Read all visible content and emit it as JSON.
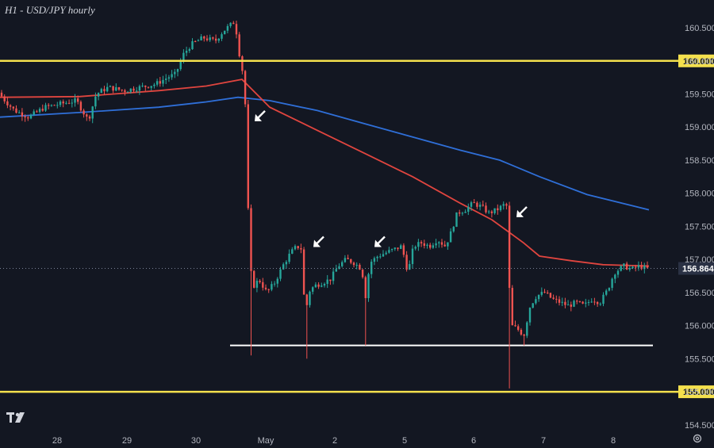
{
  "title": "H1 - USD/JPY hourly",
  "colors": {
    "background": "#131722",
    "up_candle": "#26a69a",
    "down_candle": "#ef5350",
    "ma_fast": "#e0453f",
    "ma_slow": "#2f6fd8",
    "level_line": "#f4e04d",
    "support_line": "#ffffff",
    "price_tag": "#2a3144",
    "arrow": "#ffffff"
  },
  "chart_data": {
    "type": "candlestick",
    "x_ticks": [
      "28",
      "29",
      "30",
      "May",
      "2",
      "5",
      "6",
      "7",
      "8"
    ],
    "y_ticks": [
      "160.500",
      "160.000",
      "159.500",
      "159.000",
      "158.500",
      "158.000",
      "157.500",
      "157.000",
      "156.500",
      "156.000",
      "155.500",
      "155.000",
      "154.500"
    ],
    "ylim": [
      154.45,
      160.8
    ],
    "grid": false,
    "horizontal_levels": [
      {
        "value": 160.0,
        "label": "160.000",
        "color": "#f4e04d"
      },
      {
        "value": 155.0,
        "label": "155.000",
        "color": "#f4e04d"
      },
      {
        "value": 155.7,
        "color": "#ffffff"
      }
    ],
    "last_price": {
      "value": 156.864,
      "label": "156.864"
    },
    "price_path": [
      [
        0,
        159.55
      ],
      [
        10,
        159.4
      ],
      [
        22,
        159.25
      ],
      [
        40,
        159.15
      ],
      [
        60,
        159.3
      ],
      [
        80,
        159.35
      ],
      [
        100,
        159.4
      ],
      [
        115,
        159.1
      ],
      [
        125,
        159.5
      ],
      [
        140,
        159.6
      ],
      [
        160,
        159.55
      ],
      [
        180,
        159.6
      ],
      [
        200,
        159.65
      ],
      [
        215,
        159.75
      ],
      [
        225,
        159.8
      ],
      [
        235,
        160.1
      ],
      [
        245,
        160.25
      ],
      [
        260,
        160.35
      ],
      [
        275,
        160.3
      ],
      [
        285,
        160.45
      ],
      [
        300,
        160.6
      ],
      [
        304,
        160.2
      ],
      [
        310,
        159.8
      ],
      [
        314,
        159.15
      ],
      [
        318,
        156.9
      ],
      [
        324,
        156.6
      ],
      [
        330,
        156.7
      ],
      [
        340,
        156.5
      ],
      [
        350,
        156.65
      ],
      [
        360,
        156.9
      ],
      [
        370,
        157.1
      ],
      [
        378,
        157.2
      ],
      [
        385,
        157.15
      ],
      [
        388,
        156.0
      ],
      [
        392,
        156.5
      ],
      [
        400,
        156.6
      ],
      [
        410,
        156.65
      ],
      [
        420,
        156.7
      ],
      [
        430,
        156.9
      ],
      [
        440,
        157.0
      ],
      [
        450,
        156.95
      ],
      [
        460,
        156.85
      ],
      [
        464,
        156.4
      ],
      [
        470,
        156.95
      ],
      [
        480,
        157.05
      ],
      [
        490,
        157.1
      ],
      [
        500,
        157.15
      ],
      [
        510,
        157.2
      ],
      [
        518,
        156.8
      ],
      [
        525,
        157.2
      ],
      [
        535,
        157.25
      ],
      [
        545,
        157.2
      ],
      [
        555,
        157.3
      ],
      [
        565,
        157.2
      ],
      [
        572,
        157.4
      ],
      [
        580,
        157.7
      ],
      [
        590,
        157.75
      ],
      [
        600,
        157.85
      ],
      [
        610,
        157.8
      ],
      [
        620,
        157.7
      ],
      [
        630,
        157.75
      ],
      [
        642,
        157.85
      ],
      [
        644,
        157.0
      ],
      [
        648,
        156.0
      ],
      [
        656,
        155.95
      ],
      [
        664,
        155.85
      ],
      [
        672,
        156.3
      ],
      [
        680,
        156.45
      ],
      [
        690,
        156.5
      ],
      [
        700,
        156.4
      ],
      [
        710,
        156.35
      ],
      [
        720,
        156.3
      ],
      [
        730,
        156.35
      ],
      [
        740,
        156.3
      ],
      [
        750,
        156.4
      ],
      [
        760,
        156.35
      ],
      [
        770,
        156.55
      ],
      [
        778,
        156.8
      ],
      [
        790,
        156.9
      ],
      [
        800,
        156.85
      ],
      [
        810,
        156.9
      ],
      [
        818,
        156.86
      ]
    ],
    "wick_spikes": [
      {
        "x": 318,
        "low": 155.55
      },
      {
        "x": 387,
        "low": 155.5
      },
      {
        "x": 464,
        "low": 155.7
      },
      {
        "x": 643,
        "low": 155.05
      },
      {
        "x": 664,
        "low": 155.7
      }
    ],
    "ma_fast": [
      [
        0,
        159.45
      ],
      [
        100,
        159.46
      ],
      [
        200,
        159.55
      ],
      [
        260,
        159.62
      ],
      [
        305,
        159.72
      ],
      [
        340,
        159.3
      ],
      [
        400,
        158.95
      ],
      [
        460,
        158.6
      ],
      [
        520,
        158.25
      ],
      [
        580,
        157.85
      ],
      [
        620,
        157.6
      ],
      [
        660,
        157.25
      ],
      [
        680,
        157.05
      ],
      [
        720,
        156.98
      ],
      [
        760,
        156.92
      ],
      [
        818,
        156.9
      ]
    ],
    "ma_slow": [
      [
        0,
        159.15
      ],
      [
        100,
        159.22
      ],
      [
        200,
        159.3
      ],
      [
        260,
        159.38
      ],
      [
        300,
        159.45
      ],
      [
        340,
        159.4
      ],
      [
        400,
        159.25
      ],
      [
        460,
        159.05
      ],
      [
        520,
        158.85
      ],
      [
        580,
        158.65
      ],
      [
        630,
        158.5
      ],
      [
        680,
        158.25
      ],
      [
        740,
        157.98
      ],
      [
        818,
        157.75
      ]
    ],
    "arrows": [
      {
        "x": 322,
        "y": 159.1
      },
      {
        "x": 396,
        "y": 157.2
      },
      {
        "x": 473,
        "y": 157.2
      },
      {
        "x": 652,
        "y": 157.65
      }
    ]
  }
}
